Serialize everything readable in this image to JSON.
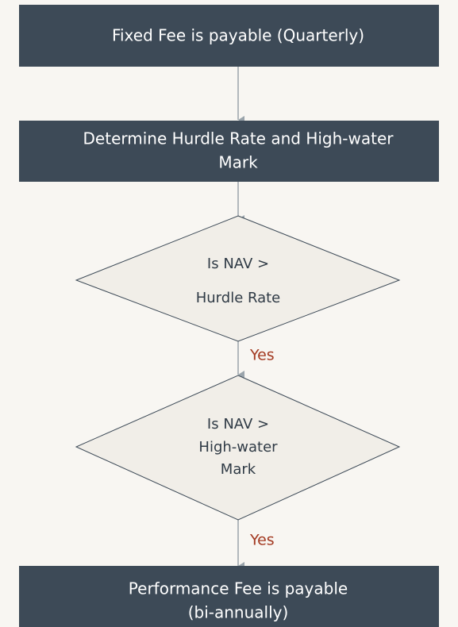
{
  "nodes": [
    {
      "lines": [
        "Fixed Fee is payable (Quarterly)"
      ]
    },
    {
      "lines": [
        "Determine Hurdle Rate and High-water",
        "Mark"
      ]
    },
    {
      "lines": [
        "Is  NAV >",
        "Hurdle Rate"
      ]
    },
    {
      "lines": [
        "Is  NAV >",
        "High-water",
        "Mark"
      ]
    },
    {
      "lines": [
        "Performance Fee is payable",
        "(bi-annually)"
      ]
    }
  ],
  "edges": [
    {
      "label": "Yes"
    },
    {
      "label": "Yes"
    }
  ]
}
